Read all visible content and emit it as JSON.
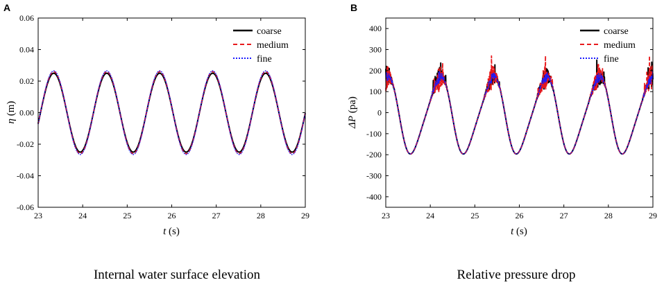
{
  "colors": {
    "coarse": "#000000",
    "medium": "#e8191c",
    "fine": "#1a1aff"
  },
  "chart_data": [
    {
      "panel": "A",
      "type": "line",
      "caption": "Internal water surface elevation",
      "xlabel_var": "t",
      "xlabel_unit": " (s)",
      "ylabel_var": "η",
      "ylabel_unit": " (m)",
      "xlim": [
        23,
        29
      ],
      "ylim": [
        -0.06,
        0.06
      ],
      "xticks": [
        "23",
        "24",
        "25",
        "26",
        "27",
        "28",
        "29"
      ],
      "yticks": [
        "0.06",
        "0.04",
        "0.02",
        "0.00",
        "-0.02",
        "-0.04",
        "-0.06"
      ],
      "legend_position": "top-right",
      "period_s": 1.19,
      "first_peak_s": 23.35,
      "series": [
        {
          "name": "coarse",
          "amplitude": 0.025
        },
        {
          "name": "medium",
          "amplitude": 0.026
        },
        {
          "name": "fine",
          "amplitude": 0.0265
        }
      ]
    },
    {
      "panel": "B",
      "type": "line",
      "caption": "Relative pressure drop",
      "xlabel_var": "t",
      "xlabel_unit": " (s)",
      "ylabel_var": "ΔP",
      "ylabel_unit": " (pa)",
      "xlim": [
        23,
        29
      ],
      "ylim": [
        -450,
        450
      ],
      "xticks": [
        "23",
        "24",
        "25",
        "26",
        "27",
        "28",
        "29"
      ],
      "yticks": [
        "400",
        "300",
        "200",
        "100",
        "0",
        "-100",
        "-200",
        "-300",
        "-400"
      ],
      "legend_position": "top-right",
      "period_s": 1.19,
      "trough_s": 23.6,
      "trough_value": -190,
      "peak_value": 165,
      "series": [
        {
          "name": "coarse",
          "spike_max": 250
        },
        {
          "name": "medium",
          "spike_max": 270
        },
        {
          "name": "fine",
          "spike_max": 200
        }
      ]
    }
  ]
}
